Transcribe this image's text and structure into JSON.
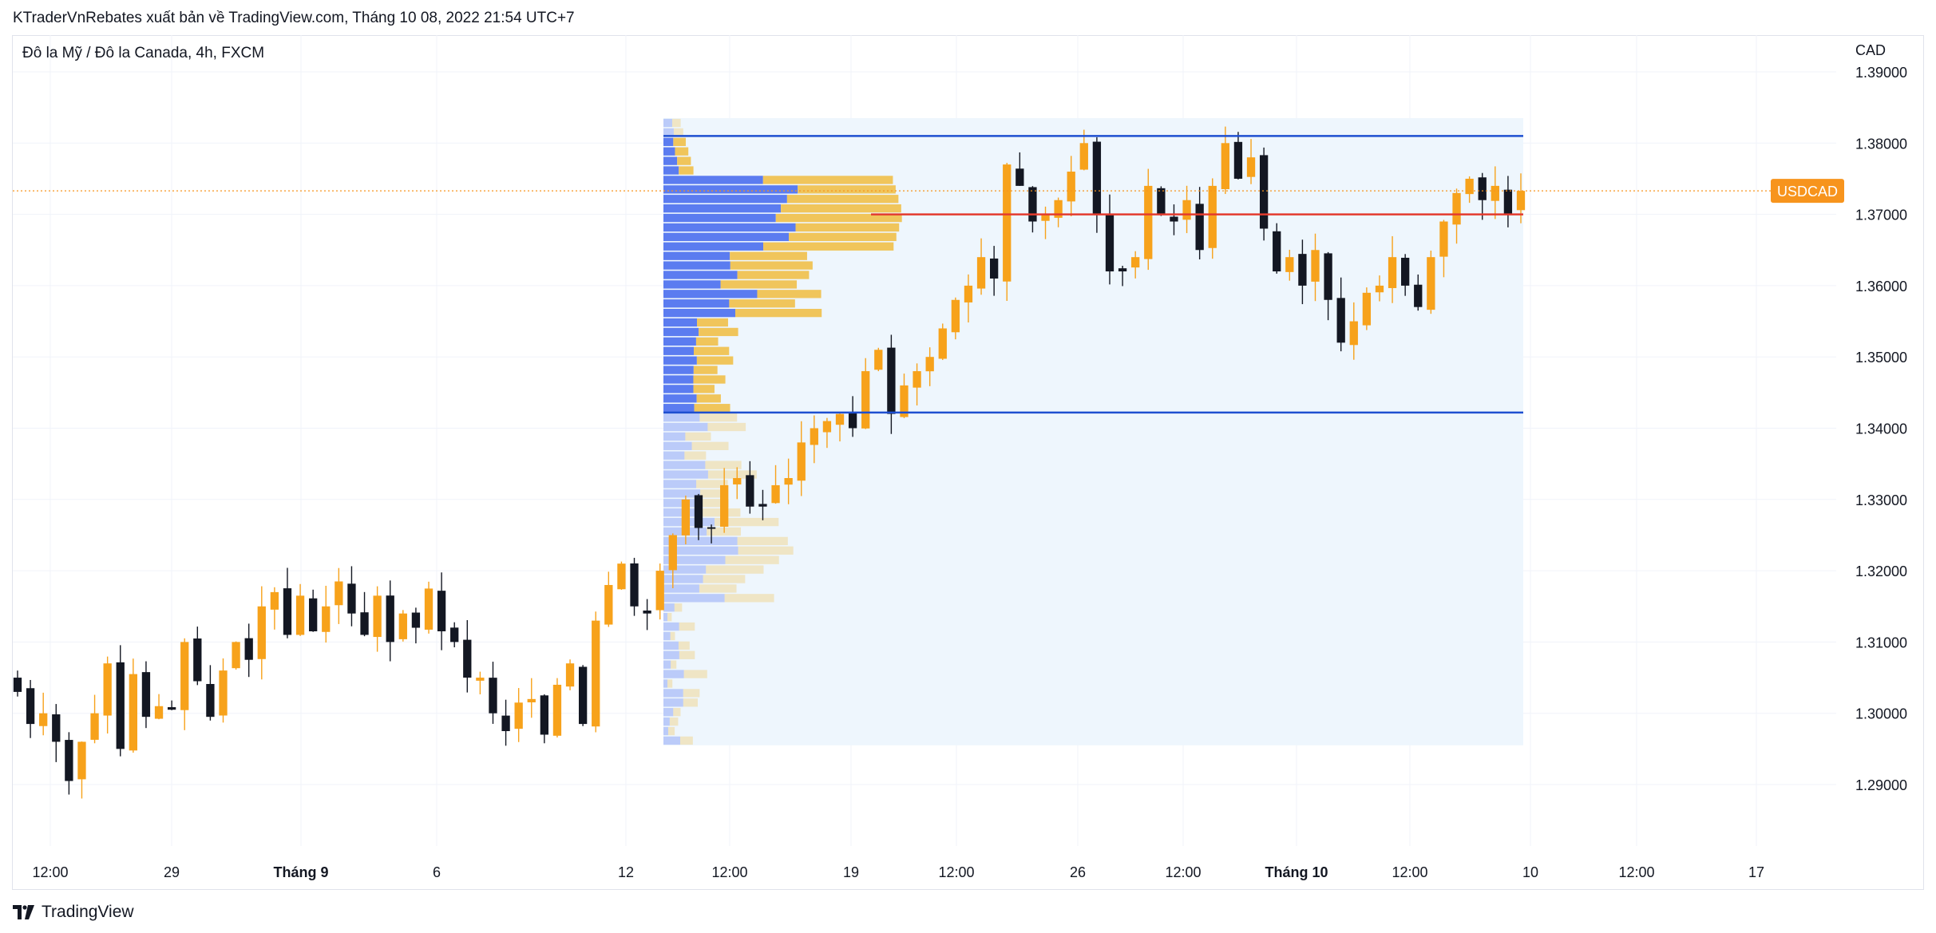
{
  "header": {
    "published_text": "KTraderVnRebates xuất bản về TradingView.com, Tháng 10 08, 2022 21:54 UTC+7"
  },
  "chart_header": {
    "symbol_description": "Đô la Mỹ / Đô la Canada, 4h, FXCM",
    "currency": "CAD"
  },
  "footer": {
    "brand": "TradingView",
    "logo_icon": "tradingview-logo-icon"
  },
  "colors": {
    "up": "#f7a21b",
    "down": "#131722",
    "vp_up": "#f0c55b",
    "vp_down": "#5b7cf0",
    "vp_range_bg": "#eef6fd",
    "range_line": "#1e4fd0",
    "poc_line": "#e33b2e",
    "price_badge": "#f7941d"
  },
  "chart_data": {
    "type": "candlestick",
    "symbol": "USDCAD",
    "interval": "4h",
    "price_axis": {
      "ticks": [
        1.29,
        1.3,
        1.31,
        1.32,
        1.33,
        1.34,
        1.35,
        1.36,
        1.37,
        1.38,
        1.39
      ],
      "tick_labels": [
        "1.29000",
        "1.30000",
        "1.31000",
        "1.32000",
        "1.33000",
        "1.34000",
        "1.35000",
        "1.36000",
        "1.37000",
        "1.38000",
        "1.39000"
      ],
      "range": [
        1.278,
        1.399
      ]
    },
    "time_axis": {
      "labels": [
        {
          "text": "12:00",
          "bold": false
        },
        {
          "text": "29",
          "bold": false
        },
        {
          "text": "Tháng 9",
          "bold": true
        },
        {
          "text": "6",
          "bold": false
        },
        {
          "text": "12",
          "bold": false
        },
        {
          "text": "12:00",
          "bold": false
        },
        {
          "text": "19",
          "bold": false
        },
        {
          "text": "12:00",
          "bold": false
        },
        {
          "text": "26",
          "bold": false
        },
        {
          "text": "12:00",
          "bold": false
        },
        {
          "text": "Tháng 10",
          "bold": true
        },
        {
          "text": "12:00",
          "bold": false
        },
        {
          "text": "10",
          "bold": false
        },
        {
          "text": "12:00",
          "bold": false
        },
        {
          "text": "17",
          "bold": false
        }
      ]
    },
    "last_price": 1.3733,
    "last_price_label": "USDCAD",
    "candle_path": [
      1.303,
      1.2985,
      1.3,
      1.296,
      1.2905,
      1.296,
      1.3,
      1.307,
      1.295,
      1.3055,
      1.2995,
      1.301,
      1.3005,
      1.31,
      1.3045,
      1.2995,
      1.306,
      1.31,
      1.3075,
      1.315,
      1.317,
      1.311,
      1.3165,
      1.3115,
      1.315,
      1.3185,
      1.314,
      1.311,
      1.3165,
      1.31,
      1.314,
      1.312,
      1.3175,
      1.3115,
      1.31,
      1.305,
      1.305,
      1.3,
      1.2975,
      1.3015,
      1.302,
      1.297,
      1.304,
      1.307,
      1.2985,
      1.313,
      1.318,
      1.321,
      1.315,
      1.314,
      1.32,
      1.325,
      1.33,
      1.326,
      1.326,
      1.332,
      1.333,
      1.329,
      1.329,
      1.332,
      1.333,
      1.338,
      1.34,
      1.341,
      1.342,
      1.34,
      1.348,
      1.351,
      1.342,
      1.346,
      1.348,
      1.35,
      1.354,
      1.358,
      1.36,
      1.364,
      1.361,
      1.377,
      1.374,
      1.369,
      1.37,
      1.372,
      1.376,
      1.38,
      1.37,
      1.362,
      1.362,
      1.364,
      1.374,
      1.37,
      1.369,
      1.372,
      1.365,
      1.374,
      1.38,
      1.375,
      1.378,
      1.368,
      1.362,
      1.364,
      1.36,
      1.365,
      1.358,
      1.352,
      1.355,
      1.359,
      1.36,
      1.364,
      1.36,
      1.357,
      1.364,
      1.369,
      1.373,
      1.375,
      1.372,
      1.374,
      1.37,
      1.3733
    ],
    "volume_profile": {
      "range_high": 1.381,
      "range_low": 1.3422,
      "poc": 1.37,
      "profile_high": 1.3835,
      "profile_low": 1.2955
    }
  }
}
